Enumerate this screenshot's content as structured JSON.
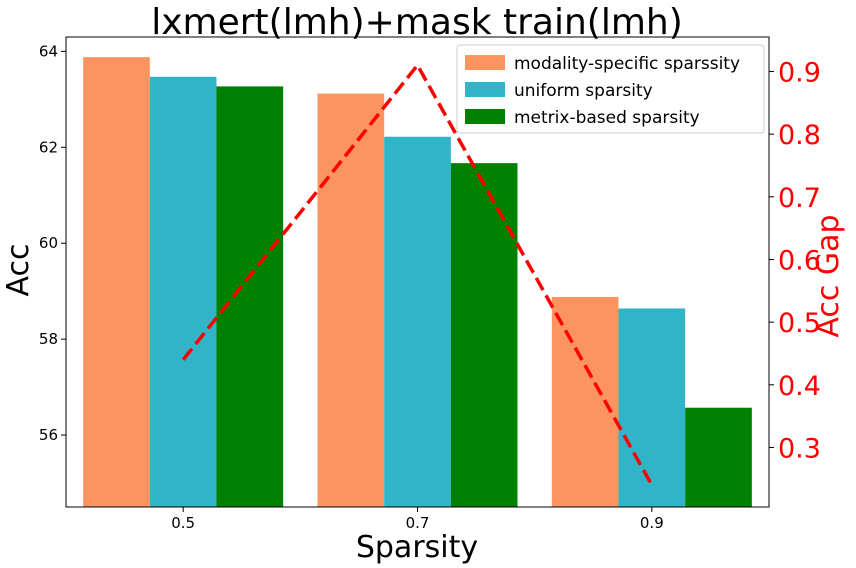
{
  "chart_data": {
    "type": "bar",
    "title": "lxmert(lmh)+mask train(lmh)",
    "xlabel": "Sparsity",
    "ylabel": "Acc",
    "y2label": "Acc Gap",
    "categories": [
      "0.5",
      "0.7",
      "0.9"
    ],
    "ylim": [
      54.5,
      64.3
    ],
    "y2lim": [
      0.205,
      0.955
    ],
    "yticks": [
      56,
      58,
      60,
      62,
      64
    ],
    "y2ticks": [
      0.3,
      0.4,
      0.5,
      0.6,
      0.7,
      0.8,
      0.9
    ],
    "series": [
      {
        "name": "modality-specific sparssity",
        "color": "#fc9460",
        "values": [
          63.88,
          63.12,
          58.88
        ]
      },
      {
        "name": "uniform sparsity",
        "color": "#31b4c8",
        "values": [
          63.47,
          62.22,
          58.64
        ]
      },
      {
        "name": "metrix-based sparsity",
        "color": "#008000",
        "values": [
          63.27,
          61.67,
          56.57
        ]
      }
    ],
    "line_series": {
      "axis": "right",
      "color": "#ff0000",
      "style": "dashed",
      "values": [
        0.44,
        0.91,
        0.24
      ]
    },
    "legend_position": "top-right",
    "grid": false
  }
}
